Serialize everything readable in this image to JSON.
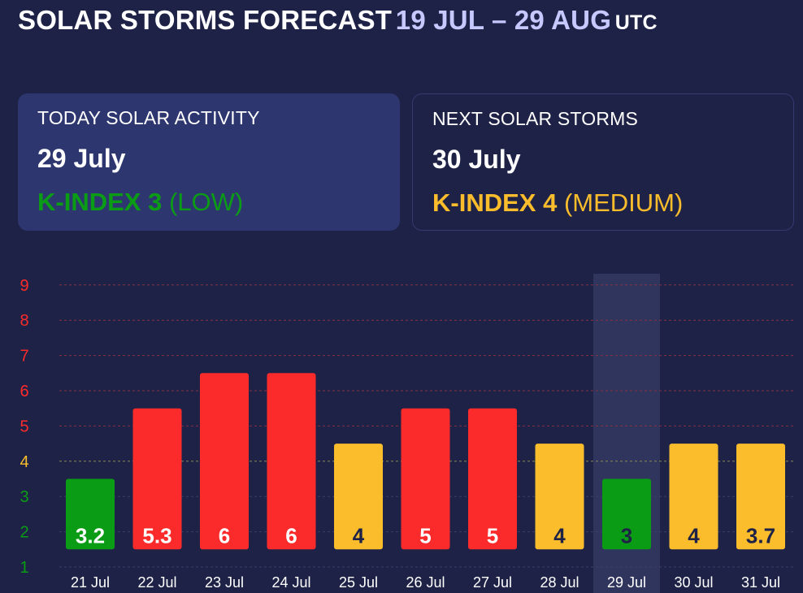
{
  "header": {
    "title_main": "SOLAR STORMS FORECAST",
    "title_range": "19 JUL – 29 AUG",
    "title_tz": "UTC"
  },
  "today_card": {
    "label": "TODAY SOLAR ACTIVITY",
    "date": "29 July",
    "kindex_text": "K-INDEX 3",
    "level_text": "(LOW)",
    "color": "#0b9c16"
  },
  "next_card": {
    "label": "NEXT SOLAR STORMS",
    "date": "30 July",
    "kindex_text": "K-INDEX 4",
    "level_text": "(MEDIUM)",
    "color": "#fbbd2c"
  },
  "colors": {
    "low": "#0b9c16",
    "medium": "#fbbd2c",
    "high": "#fc2b2b",
    "background": "#1e2246",
    "highlight": "#30355d"
  },
  "chart_data": {
    "type": "bar",
    "categories": [
      "21 Jul",
      "22 Jul",
      "23 Jul",
      "24 Jul",
      "25 Jul",
      "26 Jul",
      "27 Jul",
      "28 Jul",
      "29 Jul",
      "30 Jul",
      "31 Jul"
    ],
    "values": [
      3.2,
      5.3,
      6,
      6,
      4,
      5,
      5,
      4,
      3,
      4,
      3.7
    ],
    "value_labels": [
      "3.2",
      "5.3",
      "6",
      "6",
      "4",
      "5",
      "5",
      "4",
      "3",
      "4",
      "3.7"
    ],
    "bar_levels": [
      3,
      5,
      6,
      6,
      4,
      5,
      5,
      4,
      3,
      4,
      4
    ],
    "bar_colors": [
      "#0b9c16",
      "#fc2b2b",
      "#fc2b2b",
      "#fc2b2b",
      "#fbbd2c",
      "#fc2b2b",
      "#fc2b2b",
      "#fbbd2c",
      "#0b9c16",
      "#fbbd2c",
      "#fbbd2c"
    ],
    "label_colors": [
      "#ffffff",
      "#ffffff",
      "#ffffff",
      "#ffffff",
      "#1e2246",
      "#ffffff",
      "#ffffff",
      "#1e2246",
      "#1e2246",
      "#1e2246",
      "#1e2246"
    ],
    "highlight_category": "29 Jul",
    "y_ticks": [
      1,
      2,
      3,
      4,
      5,
      6,
      7,
      8,
      9
    ],
    "y_tick_colors": [
      "#0b9c16",
      "#0b9c16",
      "#0b9c16",
      "#fbbd2c",
      "#fc2b2b",
      "#fc2b2b",
      "#fc2b2b",
      "#fc2b2b",
      "#fc2b2b"
    ],
    "gridline_colors": [
      "#3b3f66",
      "#3b3f66",
      "#3b3f66",
      "#8a8a52",
      "#8a3040",
      "#8a3040",
      "#8a3040",
      "#8a3040",
      "#8a3040"
    ],
    "ylim": [
      1,
      9
    ],
    "grid": true,
    "title": "",
    "xlabel": "",
    "ylabel": ""
  }
}
